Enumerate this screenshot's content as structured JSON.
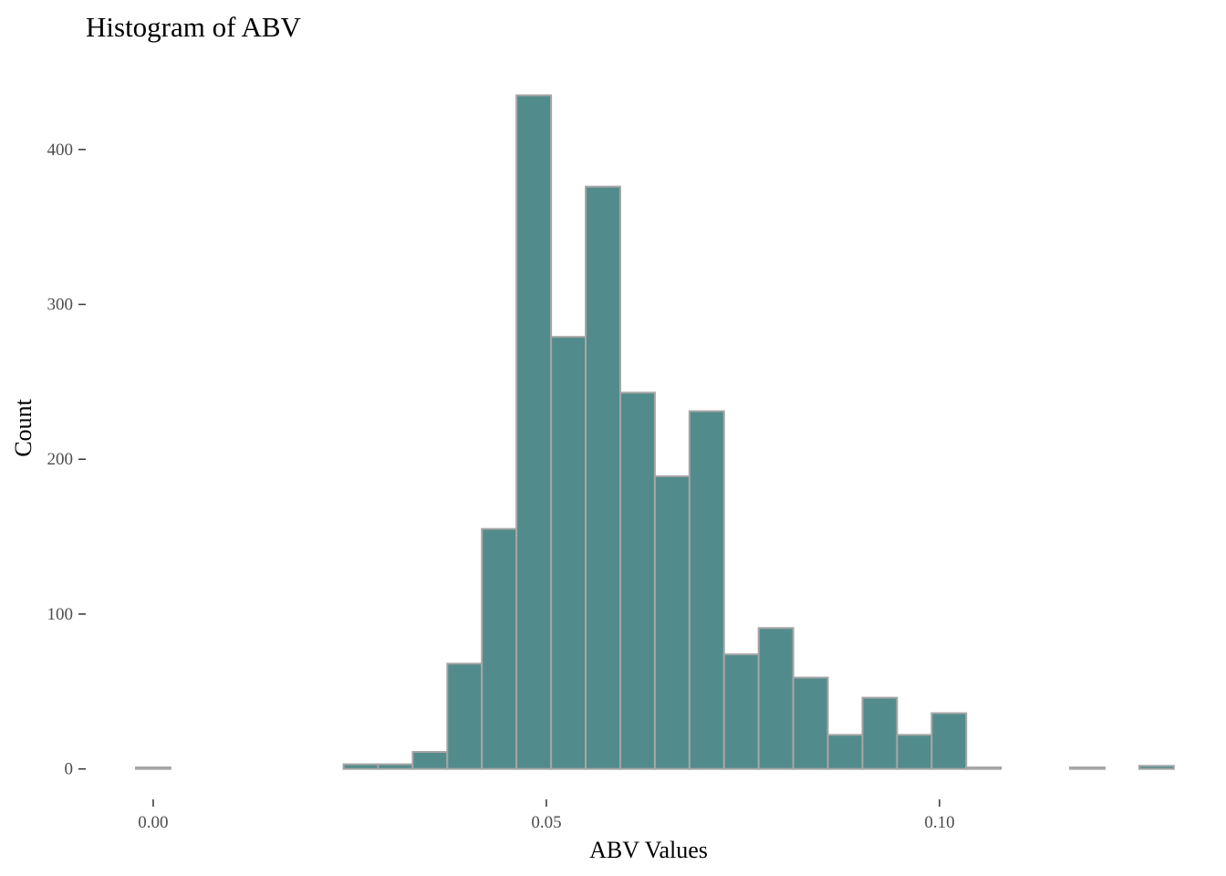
{
  "chart_data": {
    "type": "bar",
    "title": "Histogram of ABV",
    "xlabel": "ABV Values",
    "ylabel": "Count",
    "xlim": [
      -0.0044,
      0.1304
    ],
    "ylim": [
      -22,
      460
    ],
    "x_ticks": [
      {
        "value": 0.0,
        "label": "0.00"
      },
      {
        "value": 0.05,
        "label": "0.05"
      },
      {
        "value": 0.1,
        "label": "0.10"
      }
    ],
    "y_ticks": [
      {
        "value": 0,
        "label": "0"
      },
      {
        "value": 100,
        "label": "100"
      },
      {
        "value": 200,
        "label": "200"
      },
      {
        "value": 300,
        "label": "300"
      },
      {
        "value": 400,
        "label": "400"
      }
    ],
    "bin_width": 0.0044,
    "bins": [
      {
        "start": -0.0022,
        "count": 1
      },
      {
        "start": 0.0022,
        "count": 0
      },
      {
        "start": 0.0066,
        "count": 0
      },
      {
        "start": 0.011,
        "count": 0
      },
      {
        "start": 0.0154,
        "count": 0
      },
      {
        "start": 0.0198,
        "count": 0
      },
      {
        "start": 0.0242,
        "count": 3
      },
      {
        "start": 0.0286,
        "count": 3
      },
      {
        "start": 0.033,
        "count": 11
      },
      {
        "start": 0.0374,
        "count": 68
      },
      {
        "start": 0.0418,
        "count": 155
      },
      {
        "start": 0.0462,
        "count": 435
      },
      {
        "start": 0.0506,
        "count": 279
      },
      {
        "start": 0.055,
        "count": 376
      },
      {
        "start": 0.0594,
        "count": 243
      },
      {
        "start": 0.0638,
        "count": 189
      },
      {
        "start": 0.0682,
        "count": 231
      },
      {
        "start": 0.0726,
        "count": 74
      },
      {
        "start": 0.077,
        "count": 91
      },
      {
        "start": 0.0814,
        "count": 59
      },
      {
        "start": 0.0858,
        "count": 22
      },
      {
        "start": 0.0902,
        "count": 46
      },
      {
        "start": 0.0946,
        "count": 22
      },
      {
        "start": 0.099,
        "count": 36
      },
      {
        "start": 0.1034,
        "count": 1
      },
      {
        "start": 0.1078,
        "count": 0
      },
      {
        "start": 0.1122,
        "count": 0
      },
      {
        "start": 0.1166,
        "count": 1
      },
      {
        "start": 0.121,
        "count": 0
      },
      {
        "start": 0.1254,
        "count": 2
      }
    ],
    "grid": false,
    "legend": "none",
    "colors": {
      "bar_fill": "#528b8b",
      "bar_outline": "#a6a6a6",
      "tick_label": "#4d4d4d",
      "text": "#000000"
    }
  }
}
